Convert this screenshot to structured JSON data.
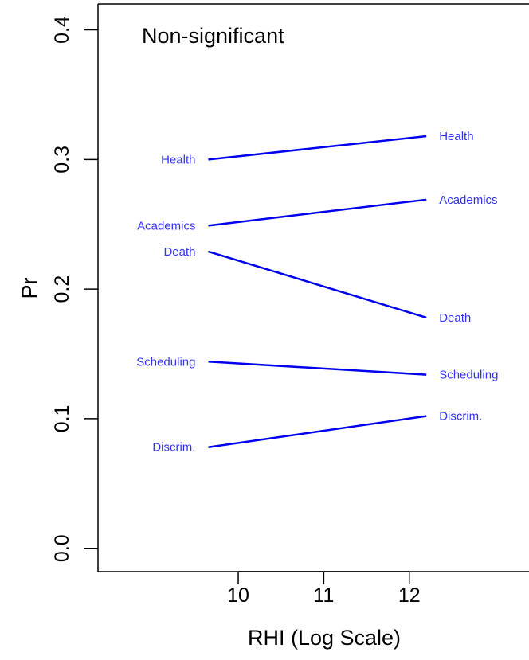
{
  "chart_data": {
    "type": "line",
    "title": "Non-significant",
    "xlabel": "RHI (Log Scale)",
    "ylabel": "Pr",
    "x": [
      9.65,
      12.2
    ],
    "xlim": [
      8.36,
      13.4
    ],
    "ylim": [
      -0.018,
      0.42
    ],
    "xticks": [
      10,
      11,
      12
    ],
    "xtick_labels": [
      "10",
      "11",
      "12"
    ],
    "yticks": [
      0.0,
      0.1,
      0.2,
      0.3,
      0.4
    ],
    "ytick_labels": [
      "0.0",
      "0.1",
      "0.2",
      "0.3",
      "0.4"
    ],
    "grid": false,
    "line_color": "#0000ee",
    "label_color": "#3333ee",
    "series": [
      {
        "name": "Health",
        "start_label": "Health",
        "end_label": "Health",
        "values": [
          0.3,
          0.318
        ]
      },
      {
        "name": "Academics",
        "start_label": "Academics",
        "end_label": "Academics",
        "values": [
          0.249,
          0.269
        ]
      },
      {
        "name": "Death",
        "start_label": "Death",
        "end_label": "Death",
        "values": [
          0.229,
          0.178
        ]
      },
      {
        "name": "Scheduling",
        "start_label": "Scheduling",
        "end_label": "Scheduling",
        "values": [
          0.144,
          0.134
        ]
      },
      {
        "name": "Discrim.",
        "start_label": "Discrim.",
        "end_label": "Discrim.",
        "values": [
          0.078,
          0.102
        ]
      }
    ]
  }
}
